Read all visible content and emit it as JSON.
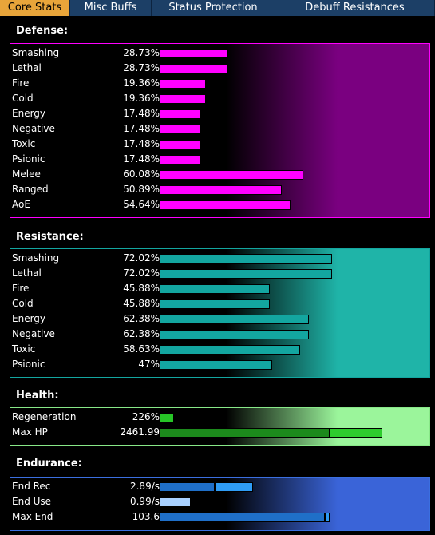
{
  "tabs": [
    {
      "label": "Core Stats",
      "active": true
    },
    {
      "label": "Misc Buffs",
      "active": false
    },
    {
      "label": "Status Protection",
      "active": false
    },
    {
      "label": "Debuff Resistances",
      "active": false
    }
  ],
  "sections": [
    {
      "key": "defense",
      "title": "Defense:",
      "bar_color": "#ff00ff",
      "border_color": "#ff00ff",
      "gradient_to": "#7a0080",
      "bar_max": 100,
      "rows": [
        {
          "label": "Smashing",
          "value": "28.73%",
          "level": 28.73
        },
        {
          "label": "Lethal",
          "value": "28.73%",
          "level": 28.73
        },
        {
          "label": "Fire",
          "value": "19.36%",
          "level": 19.36
        },
        {
          "label": "Cold",
          "value": "19.36%",
          "level": 19.36
        },
        {
          "label": "Energy",
          "value": "17.48%",
          "level": 17.48
        },
        {
          "label": "Negative",
          "value": "17.48%",
          "level": 17.48
        },
        {
          "label": "Toxic",
          "value": "17.48%",
          "level": 17.48
        },
        {
          "label": "Psionic",
          "value": "17.48%",
          "level": 17.48
        },
        {
          "label": "Melee",
          "value": "60.08%",
          "level": 60.08
        },
        {
          "label": "Ranged",
          "value": "50.89%",
          "level": 50.89
        },
        {
          "label": "AoE",
          "value": "54.64%",
          "level": 54.64
        }
      ]
    },
    {
      "key": "resistance",
      "title": "Resistance:",
      "bar_color": "#13a6a0",
      "border_color": "#13a6a0",
      "gradient_to": "#1fb4a8",
      "bar_max": 100,
      "rows": [
        {
          "label": "Smashing",
          "value": "72.02%",
          "level": 72.02
        },
        {
          "label": "Lethal",
          "value": "72.02%",
          "level": 72.02
        },
        {
          "label": "Fire",
          "value": "45.88%",
          "level": 45.88
        },
        {
          "label": "Cold",
          "value": "45.88%",
          "level": 45.88
        },
        {
          "label": "Energy",
          "value": "62.38%",
          "level": 62.38
        },
        {
          "label": "Negative",
          "value": "62.38%",
          "level": 62.38
        },
        {
          "label": "Toxic",
          "value": "58.63%",
          "level": 58.63
        },
        {
          "label": "Psionic",
          "value": "47%",
          "level": 47
        }
      ]
    },
    {
      "key": "health",
      "title": "Health:",
      "bar_color": "#2ecc2e",
      "border_color": "#88e888",
      "gradient_to": "#9bf59b",
      "rows": [
        {
          "label": "Regeneration",
          "value": "226%",
          "segments": [
            {
              "color": "#27c527",
              "fraction": 0.06
            }
          ]
        },
        {
          "label": "Max HP",
          "value": "2461.99",
          "segments": [
            {
              "color": "#1c8a1c",
              "fraction": 0.71
            },
            {
              "color": "#2ecc2e",
              "fraction": 0.22
            }
          ]
        }
      ]
    },
    {
      "key": "endurance",
      "title": "Endurance:",
      "bar_color": "#2a88e0",
      "border_color": "#3b6fe0",
      "gradient_to": "#3a64d8",
      "rows": [
        {
          "label": "End Rec",
          "value": "2.89/s",
          "segments": [
            {
              "color": "#1f6fc8",
              "fraction": 0.23
            },
            {
              "color": "#2f9cf5",
              "fraction": 0.16
            }
          ]
        },
        {
          "label": "End Use",
          "value": "0.99/s",
          "segments": [
            {
              "color": "#a8d0ff",
              "fraction": 0.13
            }
          ]
        },
        {
          "label": "Max End",
          "value": "103.6",
          "segments": [
            {
              "color": "#1f6fc8",
              "fraction": 0.69
            },
            {
              "color": "#2f9cf5",
              "fraction": 0.02
            }
          ]
        }
      ]
    }
  ]
}
